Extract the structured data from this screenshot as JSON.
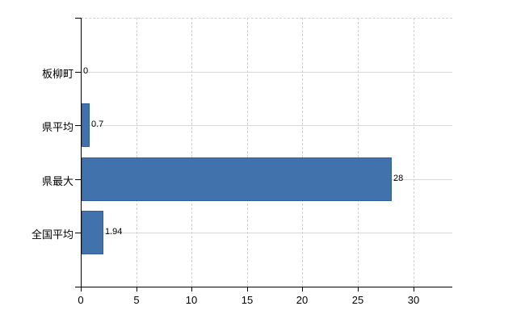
{
  "chart_data": {
    "type": "bar",
    "orientation": "horizontal",
    "title": "",
    "xlabel": "",
    "ylabel": "",
    "categories": [
      "板柳町",
      "県平均",
      "県最大",
      "全国平均"
    ],
    "values": [
      0,
      0.7,
      28,
      1.94
    ],
    "value_labels": [
      "0",
      "0.7",
      "28",
      "1.94"
    ],
    "x_ticks": [
      0,
      5,
      10,
      15,
      20,
      25,
      30
    ],
    "x_tick_labels": [
      "0",
      "5",
      "10",
      "15",
      "20",
      "25",
      "30"
    ],
    "xlim": [
      0,
      33.5
    ],
    "grid": true,
    "legend": false,
    "colors": {
      "bar_fill": "#4272ab",
      "bar_border": "#30609c",
      "grid_solid": "#d9d9d9",
      "grid_dashed": "#d2cfcf",
      "axis": "#000000",
      "text": "#000000"
    }
  }
}
